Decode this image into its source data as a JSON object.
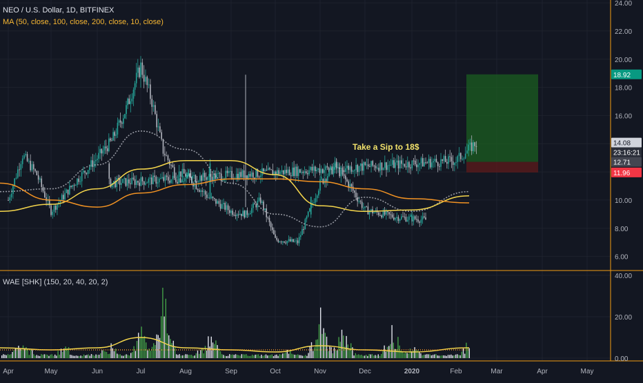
{
  "header": {
    "symbol_title": "NEO / U.S. Dollar, 1D, BITFINEX",
    "ma_legend": "MA (50, close, 100, close, 200, close, 10, close)"
  },
  "indicator": {
    "label": "WAE [SHK] (150, 20, 40, 20, 2)"
  },
  "annotation": "Take a Sip to 18$",
  "colors": {
    "background": "#131722",
    "grid": "#1e222d",
    "up": "#26a69a",
    "down": "#ef5350",
    "ma_yellow": "#f5d64c",
    "ma_orange": "#f39323",
    "ma_gray": "#9598a1",
    "separator": "#f39c12",
    "target_zone": "#1b5e20",
    "stop_zone": "#5e1b1b",
    "price_tag_green": "#089981",
    "price_tag_red": "#f23645"
  },
  "chart_data": [
    {
      "type": "candlestick",
      "title": "NEO / U.S. Dollar, 1D, BITFINEX",
      "x_ticks": [
        "Apr",
        "May",
        "Jun",
        "Jul",
        "Aug",
        "Sep",
        "Oct",
        "Nov",
        "Dec",
        "2020",
        "Feb",
        "Mar",
        "Apr",
        "May"
      ],
      "y_ticks": [
        "6.00",
        "8.00",
        "10.00",
        "12.00",
        "14.00",
        "16.00",
        "18.00",
        "20.00",
        "22.00",
        "24.00"
      ],
      "ylim": [
        5.0,
        24.2
      ],
      "grid": true,
      "price_close_path": [
        [
          "Apr",
          10.0
        ],
        [
          "Apr",
          13.2
        ],
        [
          "Apr",
          11.8
        ],
        [
          "May",
          9.2
        ],
        [
          "May",
          11.2
        ],
        [
          "Jun",
          13.0
        ],
        [
          "Jun",
          14.2
        ],
        [
          "Jun",
          16.5
        ],
        [
          "Jul",
          19.5
        ],
        [
          "Jul",
          17.0
        ],
        [
          "Jul",
          13.5
        ],
        [
          "Jul",
          12.0
        ],
        [
          "Aug",
          11.8
        ],
        [
          "Aug",
          10.2
        ],
        [
          "Sep",
          9.2
        ],
        [
          "Sep",
          9.0
        ],
        [
          "Sep",
          10.0
        ],
        [
          "Oct",
          7.2
        ],
        [
          "Oct",
          7.0
        ],
        [
          "Nov",
          11.2
        ],
        [
          "Nov",
          12.4
        ],
        [
          "Nov",
          11.0
        ],
        [
          "Dec",
          9.3
        ],
        [
          "Dec",
          8.8
        ],
        [
          "Dec",
          8.6
        ],
        [
          "2020",
          9.0
        ],
        [
          "2020",
          10.5
        ],
        [
          "2020",
          12.4
        ],
        [
          "2020",
          11.2
        ],
        [
          "Feb",
          12.8
        ],
        [
          "Feb",
          14.08
        ]
      ],
      "moving_averages": [
        {
          "name": "MA 50",
          "color": "#9598a1",
          "values": [
            [
              "Apr",
              10.6
            ],
            [
              "May",
              10.8
            ],
            [
              "Jun",
              12.5
            ],
            [
              "Jul",
              14.9
            ],
            [
              "Aug",
              13.6
            ],
            [
              "Sep",
              11.2
            ],
            [
              "Oct",
              9.0
            ],
            [
              "Nov",
              8.1
            ],
            [
              "Dec",
              10.2
            ],
            [
              "2020",
              9.2
            ],
            [
              "Feb",
              10.6
            ]
          ]
        },
        {
          "name": "MA 100",
          "color": "#f5d64c",
          "values": [
            [
              "Apr",
              9.2
            ],
            [
              "May",
              9.7
            ],
            [
              "Jun",
              10.8
            ],
            [
              "Jul",
              12.2
            ],
            [
              "Aug",
              12.8
            ],
            [
              "Sep",
              12.8
            ],
            [
              "Oct",
              11.8
            ],
            [
              "Nov",
              9.6
            ],
            [
              "Dec",
              9.2
            ],
            [
              "2020",
              9.3
            ],
            [
              "Feb",
              10.3
            ]
          ]
        },
        {
          "name": "MA 200",
          "color": "#f39323",
          "values": [
            [
              "Apr",
              11.2
            ],
            [
              "May",
              10.0
            ],
            [
              "Jun",
              9.5
            ],
            [
              "Jul",
              10.5
            ],
            [
              "Aug",
              11.1
            ],
            [
              "Sep",
              11.5
            ],
            [
              "Oct",
              11.5
            ],
            [
              "Nov",
              11.3
            ],
            [
              "Dec",
              10.8
            ],
            [
              "2020",
              10.1
            ],
            [
              "Feb",
              9.8
            ]
          ]
        }
      ],
      "position_zones": [
        {
          "name": "target",
          "top": 18.92,
          "bottom": 12.71,
          "color": "#1b5e20"
        },
        {
          "name": "stop",
          "top": 12.71,
          "bottom": 11.96,
          "color": "#5e1b1b"
        }
      ],
      "price_tags": [
        {
          "label": "18.92",
          "value": 18.92,
          "color": "#089981"
        },
        {
          "label": "14.08",
          "value": 14.08,
          "color": "#d1d4dc"
        },
        {
          "label": "23:16:21",
          "value": 13.4,
          "color": "#2a2e39"
        },
        {
          "label": "12.71",
          "value": 12.71,
          "color": "#434651"
        },
        {
          "label": "11.96",
          "value": 11.96,
          "color": "#f23645"
        }
      ],
      "annotations": [
        "Take a Sip to 18$"
      ]
    },
    {
      "type": "bar",
      "title": "WAE [SHK] (150, 20, 40, 20, 2)",
      "y_ticks": [
        "0.00",
        "20.00",
        "40.00"
      ],
      "ylim": [
        -1,
        42
      ],
      "trend_peaks": [
        [
          "Apr",
          14
        ],
        [
          "May",
          8
        ],
        [
          "Jun",
          10
        ],
        [
          "Jul",
          22
        ],
        [
          "Jul",
          40
        ],
        [
          "Aug",
          6
        ],
        [
          "Oct",
          6
        ],
        [
          "Nov",
          30
        ],
        [
          "Nov",
          18
        ],
        [
          "Dec",
          20
        ],
        [
          "2020",
          10
        ],
        [
          "2020",
          16
        ],
        [
          "Feb",
          12
        ]
      ],
      "explosion_line": [
        [
          "Apr",
          5
        ],
        [
          "May",
          4
        ],
        [
          "Jun",
          5
        ],
        [
          "Jul",
          10
        ],
        [
          "Aug",
          5
        ],
        [
          "Sep",
          4
        ],
        [
          "Oct",
          3
        ],
        [
          "Nov",
          6
        ],
        [
          "Dec",
          4
        ],
        [
          "2020",
          3
        ],
        [
          "Feb",
          5
        ]
      ],
      "dead_zone": 4
    }
  ]
}
